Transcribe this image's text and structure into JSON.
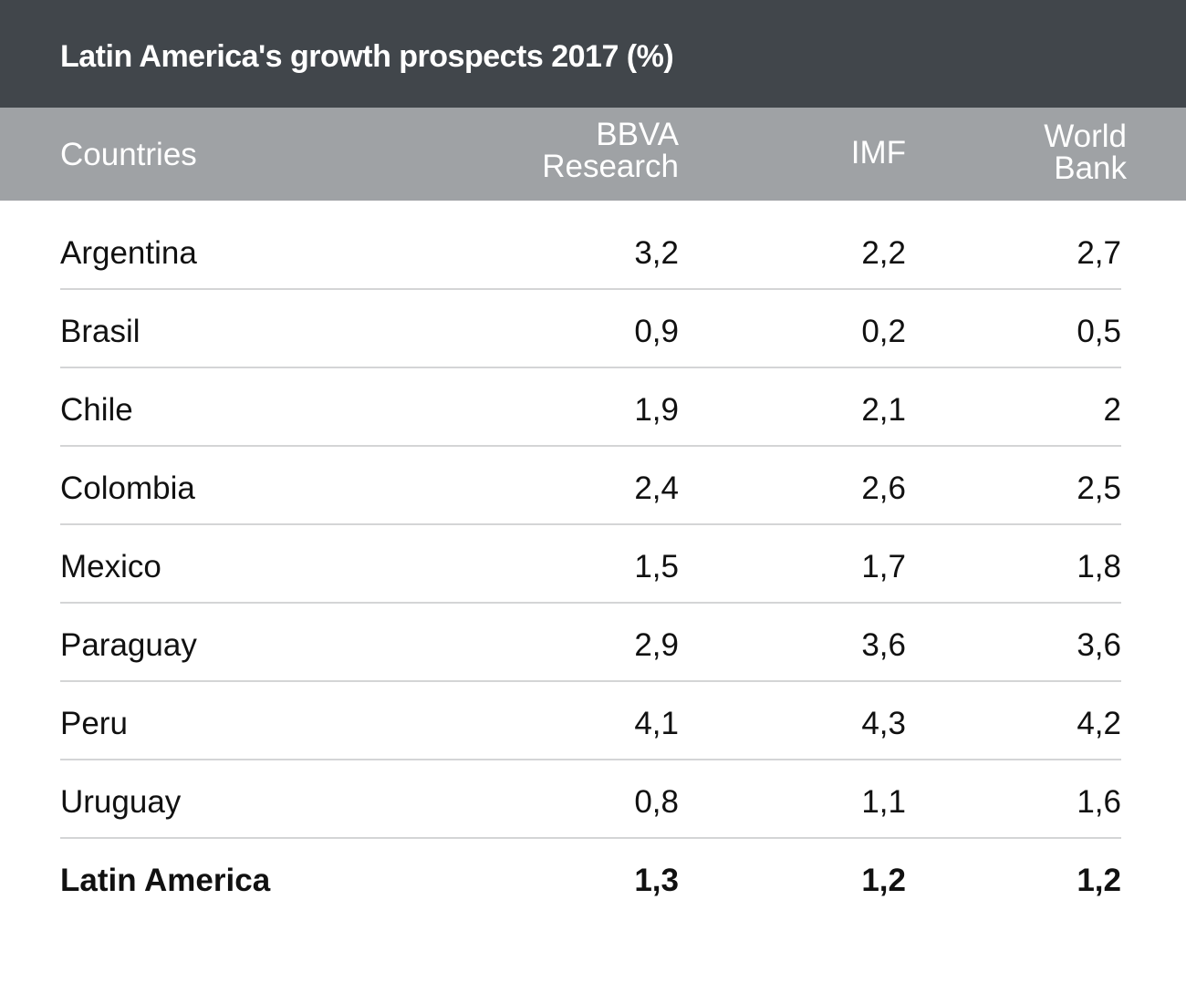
{
  "chart_data": {
    "type": "table",
    "title": "Latin America's growth prospects 2017 (%)",
    "columns": [
      "Countries",
      "BBVA Research",
      "IMF",
      "World Bank"
    ],
    "header_lines": {
      "countries": [
        "Countries"
      ],
      "bbva": [
        "BBVA",
        "Research"
      ],
      "imf": [
        "IMF"
      ],
      "world_bank": [
        "World",
        "Bank"
      ]
    },
    "rows": [
      {
        "country": "Argentina",
        "bbva": "3,2",
        "imf": "2,2",
        "world_bank": "2,7"
      },
      {
        "country": "Brasil",
        "bbva": "0,9",
        "imf": "0,2",
        "world_bank": "0,5"
      },
      {
        "country": "Chile",
        "bbva": "1,9",
        "imf": "2,1",
        "world_bank": "2"
      },
      {
        "country": "Colombia",
        "bbva": "2,4",
        "imf": "2,6",
        "world_bank": "2,5"
      },
      {
        "country": "Mexico",
        "bbva": "1,5",
        "imf": "1,7",
        "world_bank": "1,8"
      },
      {
        "country": "Paraguay",
        "bbva": "2,9",
        "imf": "3,6",
        "world_bank": "3,6"
      },
      {
        "country": "Peru",
        "bbva": "4,1",
        "imf": "4,3",
        "world_bank": "4,2"
      },
      {
        "country": "Uruguay",
        "bbva": "0,8",
        "imf": "1,1",
        "world_bank": "1,6"
      },
      {
        "country": "Latin America",
        "bbva": "1,3",
        "imf": "1,2",
        "world_bank": "1,2",
        "bold": true
      }
    ],
    "colors": {
      "title_background": "#41464b",
      "header_background": "#9fa2a5",
      "title_text": "#ffffff",
      "header_text": "#ffffff",
      "body_text": "#111111",
      "divider": "#d4d5d6"
    }
  }
}
